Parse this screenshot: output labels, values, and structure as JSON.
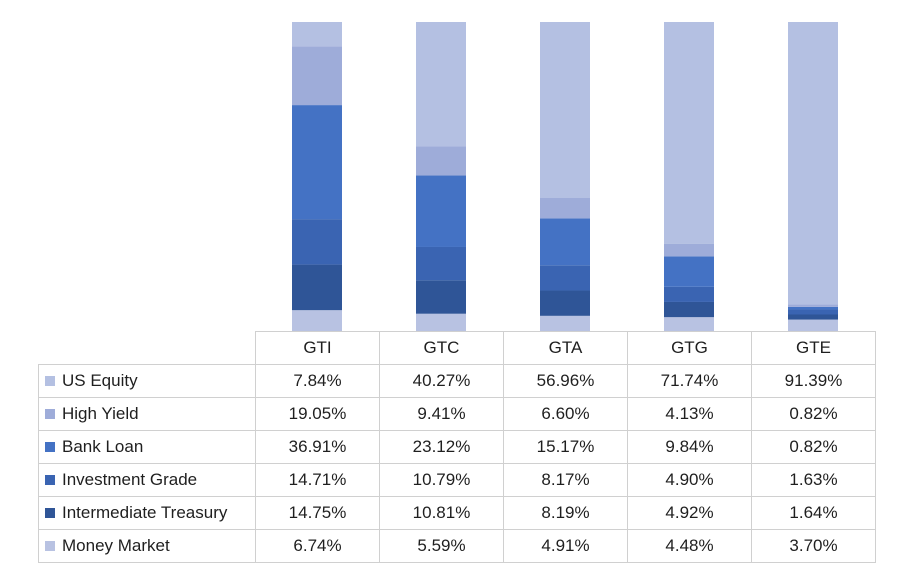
{
  "chart_data": {
    "type": "bar",
    "stacked": true,
    "normalized": true,
    "categories": [
      "GTI",
      "GTC",
      "GTA",
      "GTG",
      "GTE"
    ],
    "series": [
      {
        "name": "Money Market",
        "color": "#b8c2e2",
        "values": [
          "6.74%",
          "5.59%",
          "4.91%",
          "4.48%",
          "3.70%"
        ]
      },
      {
        "name": "Intermediate Treasury",
        "color": "#2f5597",
        "values": [
          "14.75%",
          "10.81%",
          "8.19%",
          "4.92%",
          "1.64%"
        ]
      },
      {
        "name": "Investment Grade",
        "color": "#3a64b2",
        "values": [
          "14.71%",
          "10.79%",
          "8.17%",
          "4.90%",
          "1.63%"
        ]
      },
      {
        "name": "Bank Loan",
        "color": "#4472c4",
        "values": [
          "36.91%",
          "23.12%",
          "15.17%",
          "9.84%",
          "0.82%"
        ]
      },
      {
        "name": "High Yield",
        "color": "#9eacd9",
        "values": [
          "19.05%",
          "9.41%",
          "6.60%",
          "4.13%",
          "0.82%"
        ]
      },
      {
        "name": "US Equity",
        "color": "#b4c0e2",
        "values": [
          "7.84%",
          "40.27%",
          "56.96%",
          "71.74%",
          "91.39%"
        ]
      }
    ],
    "table_row_order": [
      "US Equity",
      "High Yield",
      "Bank Loan",
      "Investment Grade",
      "Intermediate Treasury",
      "Money Market"
    ],
    "legend": "data-table",
    "grid": false
  }
}
